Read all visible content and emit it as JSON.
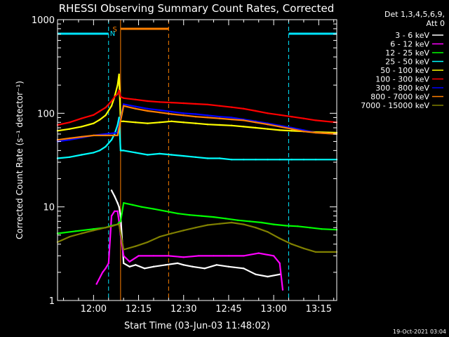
{
  "chart_data": {
    "type": "line",
    "title": "RHESSI Observing Summary Count Rates, Corrected",
    "xlabel": "Start Time (03-Jun-03 11:48:02)",
    "ylabel": "Corrected Count Rate (s⁻¹ detector⁻¹)",
    "yscale": "log",
    "ylim": [
      1,
      1000
    ],
    "xlim_minutes": [
      -12,
      81
    ],
    "x_tick_labels": [
      "12:00",
      "12:15",
      "12:30",
      "12:45",
      "13:00",
      "13:15"
    ],
    "x_tick_minutes": [
      0,
      15,
      30,
      45,
      60,
      75
    ],
    "y_tick_labels": [
      "1",
      "10",
      "100",
      "1000"
    ],
    "y_tick_values": [
      1,
      10,
      100,
      1000
    ],
    "legend_header": [
      "Det 1,3,4,5,6,9,",
      "Att 0"
    ],
    "legend_position": "right",
    "timestamp": "19-Oct-2021 03:04",
    "annotations": {
      "saa_label": "S",
      "night_label": "N"
    },
    "night_segments": [
      [
        -12,
        5
      ],
      [
        65,
        81
      ]
    ],
    "night_boundaries": [
      5,
      65,
      81
    ],
    "saa_segment": [
      9,
      25
    ],
    "saa_boundaries": [
      9,
      25
    ],
    "data_gap": [
      9,
      25
    ],
    "series": [
      {
        "name": "3 - 6 keV",
        "color": "#ffffff",
        "x": [
          3,
          5,
          6,
          7,
          8,
          8.5,
          9,
          10,
          12,
          14,
          17,
          20,
          24,
          28,
          30,
          33,
          37,
          41,
          45,
          50,
          54,
          58,
          62,
          66,
          70,
          74,
          78,
          81
        ],
        "y": [
          0,
          0,
          15,
          13,
          11,
          10,
          8,
          2.5,
          2.3,
          2.4,
          2.2,
          2.3,
          2.4,
          2.5,
          2.4,
          2.3,
          2.2,
          2.4,
          2.3,
          2.2,
          1.9,
          1.8,
          1.9,
          0,
          0,
          0,
          0,
          0
        ]
      },
      {
        "name": "6 - 12 keV",
        "color": "#ff00ff",
        "x": [
          1,
          3,
          4,
          5,
          6,
          7,
          8,
          8.5,
          9,
          10,
          12,
          15,
          20,
          25,
          30,
          35,
          40,
          45,
          50,
          55,
          60,
          62,
          63
        ],
        "y": [
          1.5,
          2,
          2.2,
          2.5,
          8,
          9,
          9,
          7,
          5,
          3,
          2.6,
          3,
          3,
          3,
          2.9,
          3,
          3,
          3,
          3,
          3.2,
          3,
          2.5,
          1.3
        ]
      },
      {
        "name": "12 - 25 keV",
        "color": "#00ff00",
        "x": [
          -12,
          -6,
          0,
          4,
          6,
          8,
          8.5,
          9,
          10,
          13,
          16,
          20,
          24,
          28,
          32,
          36,
          40,
          44,
          48,
          52,
          56,
          60,
          64,
          68,
          72,
          76,
          81
        ],
        "y": [
          5.2,
          5.5,
          5.8,
          6,
          6.3,
          6.5,
          6.8,
          7,
          11,
          10.5,
          10,
          9.5,
          9,
          8.5,
          8.2,
          8,
          7.8,
          7.5,
          7.2,
          7,
          6.8,
          6.5,
          6.3,
          6.2,
          6,
          5.8,
          5.7
        ]
      },
      {
        "name": "25 - 50 keV",
        "color": "#00ffff",
        "x": [
          -12,
          -8,
          -4,
          0,
          2,
          4,
          6,
          7,
          8,
          8.5,
          9,
          10,
          14,
          18,
          22,
          26,
          30,
          34,
          38,
          42,
          46,
          50,
          54,
          58,
          62,
          66,
          70,
          74,
          81
        ],
        "y": [
          33,
          34,
          36,
          38,
          40,
          44,
          52,
          60,
          75,
          90,
          40,
          40,
          38,
          36,
          37,
          36,
          35,
          34,
          33,
          33,
          32,
          32,
          32,
          32,
          32,
          32,
          32,
          32,
          32
        ]
      },
      {
        "name": "50 - 100 keV",
        "color": "#ffff00",
        "x": [
          -12,
          -8,
          -4,
          0,
          2,
          4,
          6,
          7,
          8,
          8.5,
          9,
          10,
          14,
          18,
          22,
          26,
          30,
          34,
          38,
          42,
          46,
          50,
          54,
          58,
          62,
          66,
          70,
          74,
          81
        ],
        "y": [
          65,
          68,
          72,
          78,
          85,
          95,
          120,
          150,
          200,
          260,
          82,
          82,
          80,
          78,
          80,
          82,
          80,
          78,
          76,
          75,
          74,
          72,
          70,
          68,
          66,
          65,
          64,
          63,
          62
        ]
      },
      {
        "name": "100 - 300 keV",
        "color": "#ff0000",
        "x": [
          -12,
          -8,
          -4,
          0,
          2,
          4,
          6,
          7,
          8,
          8.5,
          9,
          10,
          14,
          18,
          22,
          26,
          30,
          34,
          38,
          42,
          46,
          50,
          54,
          58,
          62,
          66,
          70,
          74,
          81
        ],
        "y": [
          75,
          80,
          88,
          96,
          105,
          115,
          135,
          150,
          160,
          175,
          150,
          145,
          140,
          135,
          132,
          130,
          128,
          126,
          124,
          120,
          116,
          112,
          106,
          100,
          96,
          92,
          88,
          84,
          80
        ]
      },
      {
        "name": "300 - 800 keV",
        "color": "#0000ff",
        "x": [
          -12,
          -8,
          -4,
          0,
          4,
          8,
          10,
          14,
          18,
          22,
          26,
          30,
          34,
          38,
          42,
          46,
          50,
          54,
          58,
          62,
          66,
          70,
          74,
          81
        ],
        "y": [
          50,
          52,
          55,
          58,
          60,
          62,
          125,
          118,
          112,
          108,
          104,
          100,
          98,
          95,
          92,
          90,
          86,
          82,
          78,
          74,
          70,
          66,
          62,
          60
        ]
      },
      {
        "name": "800 - 7000 keV",
        "color": "#ff8000",
        "x": [
          -12,
          -8,
          -4,
          0,
          4,
          8,
          10,
          14,
          18,
          22,
          26,
          30,
          34,
          38,
          42,
          46,
          50,
          54,
          58,
          62,
          66,
          70,
          74,
          81
        ],
        "y": [
          52,
          54,
          56,
          58,
          58,
          58,
          120,
          112,
          106,
          102,
          98,
          95,
          92,
          90,
          88,
          86,
          84,
          80,
          76,
          72,
          68,
          64,
          62,
          60
        ]
      },
      {
        "name": "7000 - 15000 keV",
        "color": "#808000",
        "x": [
          -12,
          -8,
          -4,
          0,
          2,
          4,
          6,
          8,
          8.5,
          10,
          14,
          18,
          22,
          26,
          30,
          34,
          38,
          42,
          46,
          50,
          54,
          58,
          62,
          66,
          70,
          74,
          81
        ],
        "y": [
          4.2,
          4.8,
          5.2,
          5.6,
          5.8,
          6,
          6.2,
          6.5,
          6.5,
          3.5,
          3.8,
          4.2,
          4.8,
          5.2,
          5.6,
          6,
          6.4,
          6.6,
          6.8,
          6.5,
          6,
          5.4,
          4.6,
          4,
          3.6,
          3.3,
          3.3
        ]
      }
    ]
  }
}
